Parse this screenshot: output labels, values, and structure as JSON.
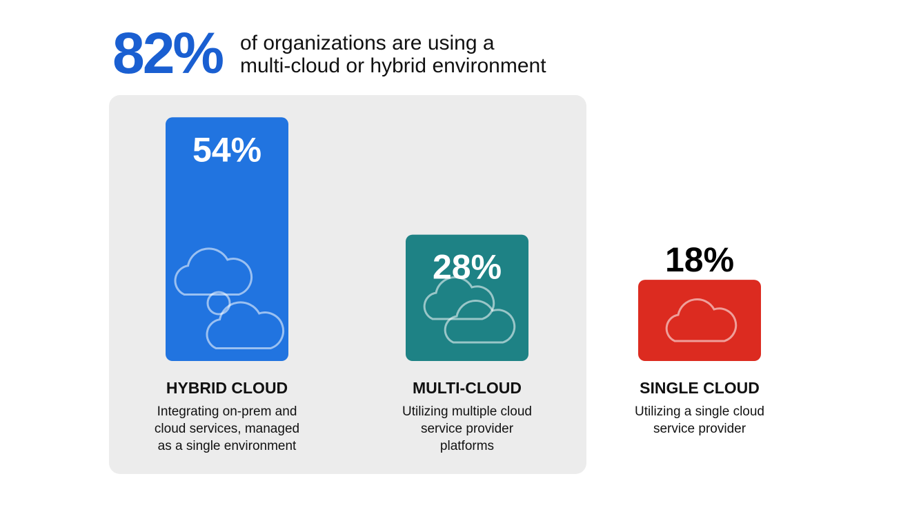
{
  "chart_data": {
    "type": "bar",
    "headline": "82%",
    "subtitle": [
      "of organizations are using a",
      "multi-cloud or hybrid environment"
    ],
    "categories": [
      "HYBRID CLOUD",
      "MULTI-CLOUD",
      "SINGLE CLOUD"
    ],
    "values": [
      54,
      28,
      18
    ],
    "value_labels": [
      "54%",
      "28%",
      "18%"
    ],
    "colors": [
      "#2174e0",
      "#1e8285",
      "#dc2b20"
    ],
    "descriptions": [
      [
        "Integrating on-prem and",
        "cloud services, managed",
        "as a single environment"
      ],
      [
        "Utilizing multiple cloud",
        "service provider",
        "platforms"
      ],
      [
        "Utilizing a single cloud",
        "service provider"
      ]
    ]
  }
}
